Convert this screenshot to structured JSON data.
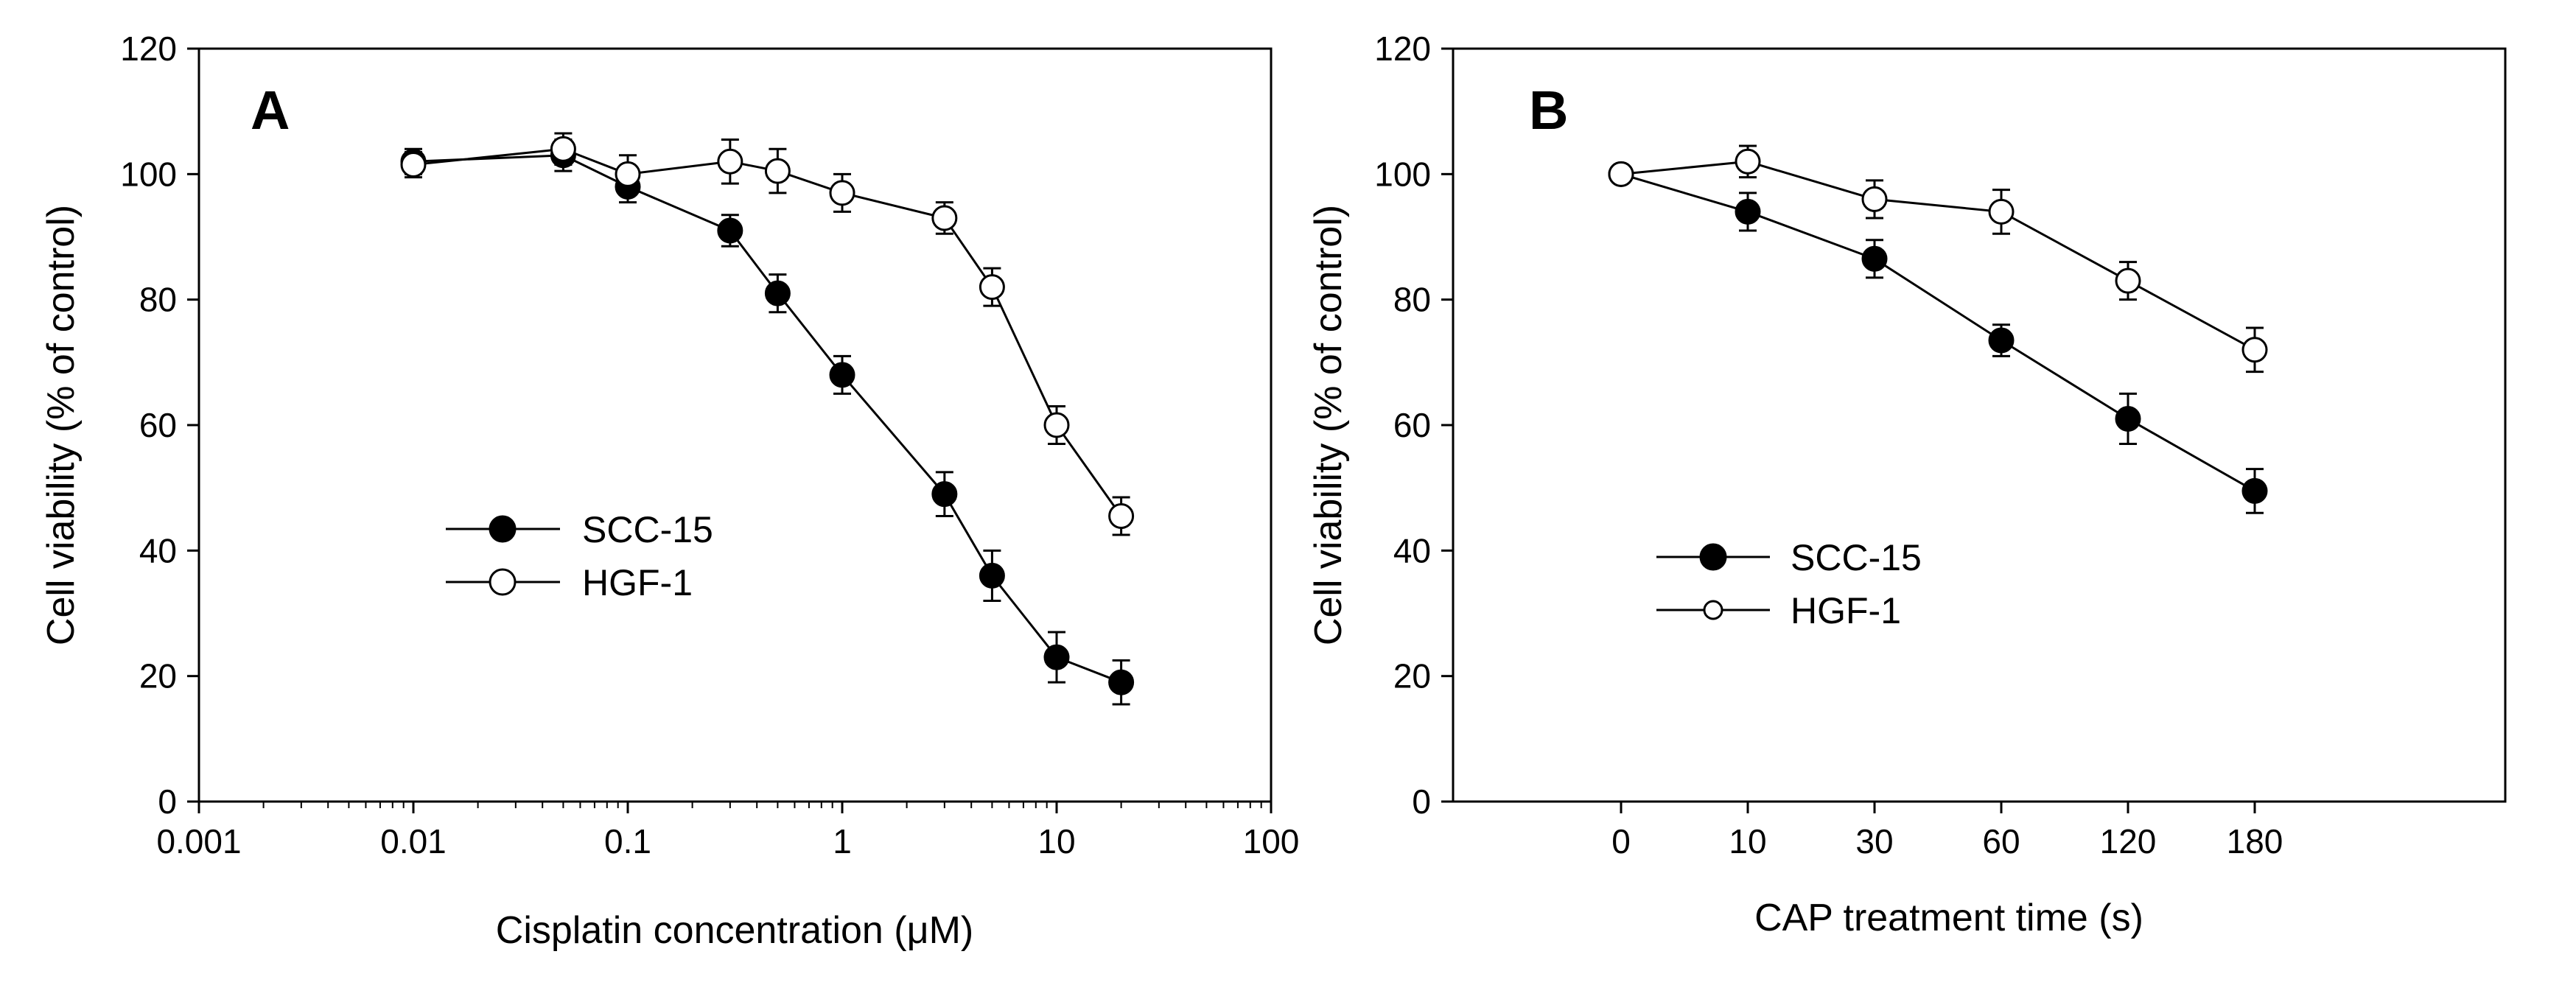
{
  "chart_data": [
    {
      "panel": "A",
      "type": "line",
      "x_scale": "log",
      "xlabel": "Cisplatin concentration (μM)",
      "ylabel": "Cell viability (% of control)",
      "xlim": [
        0.001,
        100
      ],
      "ylim": [
        0,
        120
      ],
      "x_ticks": [
        0.001,
        0.01,
        0.1,
        1,
        10,
        100
      ],
      "x_tick_labels": [
        "0.001",
        "0.01",
        "0.1",
        "1",
        "10",
        "100"
      ],
      "y_ticks": [
        0,
        20,
        40,
        60,
        80,
        100,
        120
      ],
      "y_tick_labels": [
        "0",
        "20",
        "40",
        "60",
        "80",
        "100",
        "120"
      ],
      "legend_position": "center-left",
      "series": [
        {
          "name": "SCC-15",
          "marker": "filled-circle",
          "x": [
            0.01,
            0.05,
            0.1,
            0.3,
            0.5,
            1,
            3,
            5,
            10,
            20
          ],
          "y": [
            102,
            103,
            98,
            91,
            81,
            68,
            49,
            36,
            23,
            19
          ],
          "err": [
            2,
            2.5,
            2.5,
            2.5,
            3,
            3,
            3.5,
            4,
            4,
            3.5
          ]
        },
        {
          "name": "HGF-1",
          "marker": "open-circle",
          "x": [
            0.01,
            0.05,
            0.1,
            0.3,
            0.5,
            1,
            3,
            5,
            10,
            20
          ],
          "y": [
            101.5,
            104,
            100,
            102,
            100.5,
            97,
            93,
            82,
            60,
            45.5
          ],
          "err": [
            2,
            2.5,
            3,
            3.5,
            3.5,
            3,
            2.5,
            3,
            3,
            3
          ]
        }
      ]
    },
    {
      "panel": "B",
      "type": "line",
      "x_scale": "categorical",
      "xlabel": "CAP treatment time (s)",
      "ylabel": "Cell viability (% of control)",
      "categories": [
        "0",
        "10",
        "30",
        "60",
        "120",
        "180"
      ],
      "ylim": [
        0,
        120
      ],
      "y_ticks": [
        0,
        20,
        40,
        60,
        80,
        100,
        120
      ],
      "y_tick_labels": [
        "0",
        "20",
        "40",
        "60",
        "80",
        "100",
        "120"
      ],
      "legend_position": "lower-left",
      "series": [
        {
          "name": "SCC-15",
          "marker": "filled-circle",
          "values": [
            100,
            94,
            86.5,
            73.5,
            61,
            49.5
          ],
          "err": [
            1,
            3,
            3,
            2.5,
            4,
            3.5
          ]
        },
        {
          "name": "HGF-1",
          "marker": "open-circle",
          "values": [
            100,
            102,
            96,
            94,
            83,
            72
          ],
          "err": [
            1,
            2.5,
            3,
            3.5,
            3,
            3.5
          ]
        }
      ]
    }
  ]
}
